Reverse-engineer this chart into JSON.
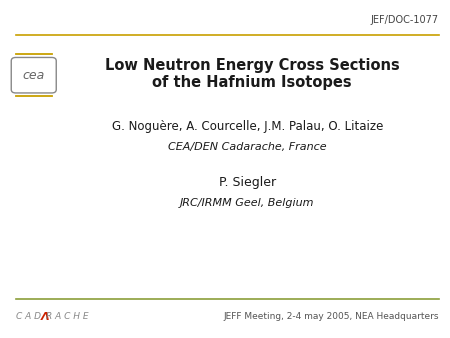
{
  "doc_id": "JEF/DOC-1077",
  "title_line1": "Low Neutron Energy Cross Sections",
  "title_line2": "of the Hafnium Isotopes",
  "author1": "G. Noguère, A. Courcelle, J.M. Palau, O. Litaize",
  "affil1": "CEA/DEN Cadarache, France",
  "author2": "P. Siegler",
  "affil2": "JRC/IRMM Geel, Belgium",
  "footer_right": "JEFF Meeting, 2-4 may 2005, NEA Headquarters",
  "top_line_color": "#C8A000",
  "bottom_line_color": "#8B9E3A",
  "cea_line_color": "#C8A000",
  "background_color": "#ffffff",
  "title_color": "#1a1a1a",
  "doc_id_color": "#444444",
  "footer_color": "#555555",
  "cea_box_color": "#888888",
  "cea_text_color": "#666666",
  "cadarache_color": "#888888",
  "cadarache_a_color": "#cc2200"
}
